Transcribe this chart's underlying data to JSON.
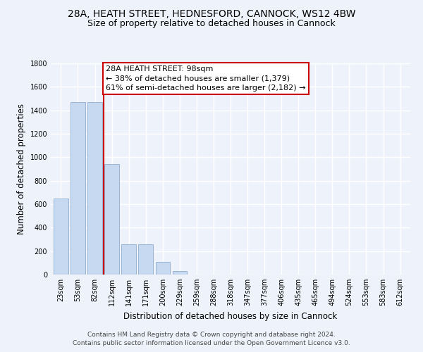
{
  "title": "28A, HEATH STREET, HEDNESFORD, CANNOCK, WS12 4BW",
  "subtitle": "Size of property relative to detached houses in Cannock",
  "xlabel": "Distribution of detached houses by size in Cannock",
  "ylabel": "Number of detached properties",
  "categories": [
    "23sqm",
    "53sqm",
    "82sqm",
    "112sqm",
    "141sqm",
    "171sqm",
    "200sqm",
    "229sqm",
    "259sqm",
    "288sqm",
    "318sqm",
    "347sqm",
    "377sqm",
    "406sqm",
    "435sqm",
    "465sqm",
    "494sqm",
    "524sqm",
    "553sqm",
    "583sqm",
    "612sqm"
  ],
  "values": [
    650,
    1470,
    1470,
    940,
    260,
    260,
    110,
    30,
    0,
    0,
    0,
    0,
    0,
    0,
    0,
    0,
    0,
    0,
    0,
    0,
    0
  ],
  "bar_color": "#c6d9f0",
  "bar_edge_color": "#9ab4d4",
  "vline_x": 2.5,
  "vline_label": "28A HEATH STREET: 98sqm",
  "annotation_line1": "← 38% of detached houses are smaller (1,379)",
  "annotation_line2": "61% of semi-detached houses are larger (2,182) →",
  "annotation_box_color": "#ffffff",
  "annotation_box_edge_color": "#cc0000",
  "vline_color": "#cc0000",
  "ylim": [
    0,
    1800
  ],
  "yticks": [
    0,
    200,
    400,
    600,
    800,
    1000,
    1200,
    1400,
    1600,
    1800
  ],
  "background_color": "#eef2fa",
  "grid_color": "#ffffff",
  "footer_line1": "Contains HM Land Registry data © Crown copyright and database right 2024.",
  "footer_line2": "Contains public sector information licensed under the Open Government Licence v3.0.",
  "title_fontsize": 10,
  "subtitle_fontsize": 9,
  "axis_label_fontsize": 8.5,
  "tick_fontsize": 7,
  "annotation_fontsize": 8,
  "footer_fontsize": 6.5
}
